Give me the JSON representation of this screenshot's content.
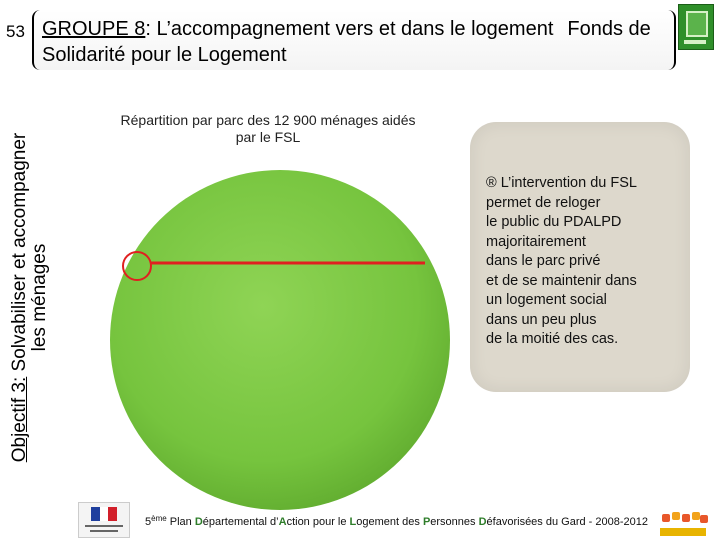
{
  "slide": {
    "number": "53",
    "title": {
      "group": "GROUPE 8",
      "part1": ": L’accompagnement vers et dans le logement",
      "part2": "Fonds de",
      "line2_first": "S",
      "line2_a": "olidarité pour le ",
      "line2_L": "L",
      "line2_b": "ogement"
    },
    "vertical_title": {
      "underlined": "Objectif 3:",
      "rest_line1": " Solvabiliser et accompagner",
      "line2": "les ménages"
    }
  },
  "chart_data": {
    "type": "pie",
    "title": "Répartition par parc des 12 900 ménages aidés par le FSL",
    "title_line1": "Répartition par parc des 12 900 ménages aidés",
    "title_line2": "par le FSL",
    "slices": [
      {
        "value": 100,
        "color": "#7dc844"
      }
    ],
    "annotation_color": "#e02020"
  },
  "note": {
    "bullet": "®",
    "lines": [
      "L’intervention du FSL",
      "permet de reloger",
      "le public du PDALPD",
      "majoritairement",
      "dans le parc privé",
      "et de se maintenir dans",
      "un logement social",
      "dans un peu plus",
      "de la moitié des cas."
    ]
  },
  "footer": {
    "prefix": "5",
    "sup": "ème",
    "segments": [
      {
        "t": " Plan ",
        "b": false
      },
      {
        "t": "D",
        "b": true
      },
      {
        "t": "épartemental d’",
        "b": false
      },
      {
        "t": "A",
        "b": true
      },
      {
        "t": "ction pour le ",
        "b": false
      },
      {
        "t": "L",
        "b": true
      },
      {
        "t": "ogement des ",
        "b": false
      },
      {
        "t": "P",
        "b": true
      },
      {
        "t": "ersonnes ",
        "b": false
      },
      {
        "t": "D",
        "b": true
      },
      {
        "t": "éfavorisées du Gard - 2008-2012",
        "b": false
      }
    ]
  },
  "colors": {
    "accent_green": "#2e7d2a",
    "note_bg": "#ddd8cc"
  }
}
